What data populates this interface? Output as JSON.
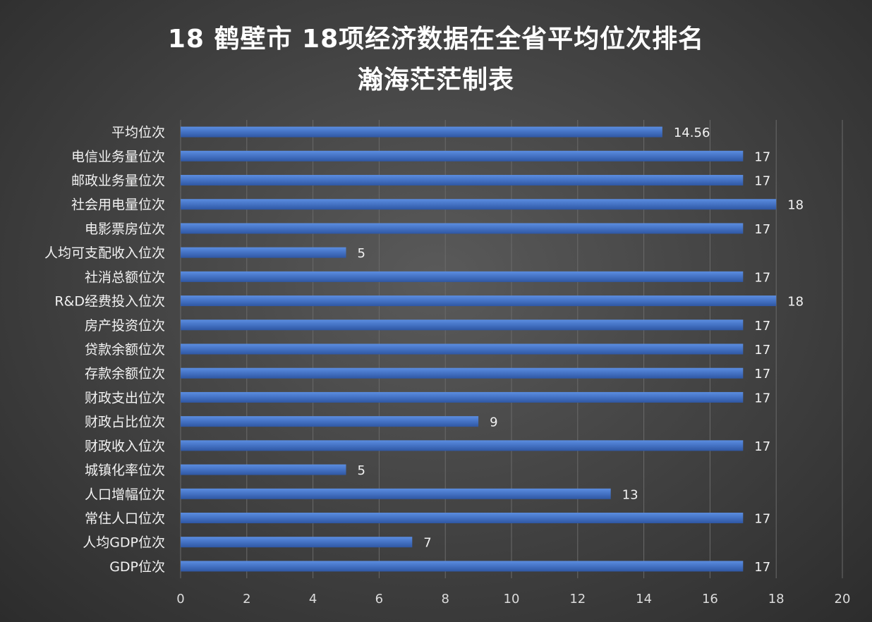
{
  "chart_data": {
    "type": "bar",
    "orientation": "horizontal",
    "title": "18 鹤壁市 18项经济数据在全省平均位次排名",
    "subtitle": "瀚海茫茫制表",
    "categories": [
      "平均位次",
      "电信业务量位次",
      "邮政业务量位次",
      "社会用电量位次",
      "电影票房位次",
      "人均可支配收入位次",
      "社消总额位次",
      "R&D经费投入位次",
      "房产投资位次",
      "贷款余额位次",
      "存款余额位次",
      "财政支出位次",
      "财政占比位次",
      "财政收入位次",
      "城镇化率位次",
      "人口增幅位次",
      "常住人口位次",
      "人均GDP位次",
      "GDP位次"
    ],
    "values": [
      14.56,
      17,
      17,
      18,
      17,
      5,
      17,
      18,
      17,
      17,
      17,
      17,
      9,
      17,
      5,
      13,
      17,
      7,
      17
    ],
    "data_labels": [
      "14.56",
      "17",
      "17",
      "18",
      "17",
      "5",
      "17",
      "18",
      "17",
      "17",
      "17",
      "17",
      "9",
      "17",
      "5",
      "13",
      "17",
      "7",
      "17"
    ],
    "xlim": [
      0,
      20
    ],
    "xticks": [
      "0",
      "2",
      "4",
      "6",
      "8",
      "10",
      "12",
      "14",
      "16",
      "18",
      "20"
    ],
    "grid": "vertical",
    "bar_color": "#4472c4",
    "background": "#454545"
  }
}
